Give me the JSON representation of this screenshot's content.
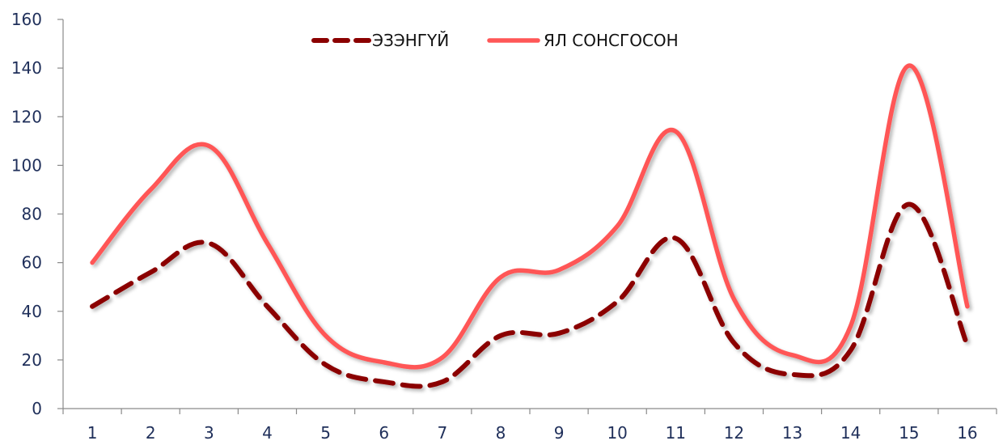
{
  "chart_data": {
    "type": "line",
    "x": [
      1,
      2,
      3,
      4,
      5,
      6,
      7,
      8,
      9,
      10,
      11,
      12,
      13,
      14,
      15,
      16
    ],
    "series": [
      {
        "name": "ЭЗЭНГҮЙ",
        "values": [
          42,
          56,
          68,
          42,
          18,
          11,
          11,
          30,
          31,
          44,
          70,
          27,
          14,
          24,
          84,
          26
        ],
        "color": "#8b0000",
        "dash": "dashed"
      },
      {
        "name": "ЯЛ СОНСГОСОН",
        "values": [
          60,
          90,
          108,
          68,
          30,
          19,
          21,
          54,
          57,
          75,
          114,
          45,
          22,
          34,
          141,
          42
        ],
        "color": "#ff5757",
        "dash": "solid"
      }
    ],
    "ylim": [
      0,
      160
    ],
    "yticks": [
      0,
      20,
      40,
      60,
      80,
      100,
      120,
      140,
      160
    ],
    "title": "",
    "xlabel": "",
    "ylabel": "",
    "grid": false,
    "legend_position": "top-center"
  }
}
